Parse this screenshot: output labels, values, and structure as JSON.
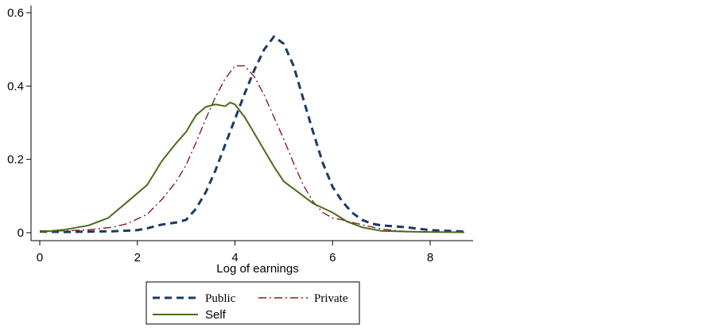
{
  "chart_data": {
    "type": "line",
    "title": "",
    "xlabel": "Log of earnings",
    "ylabel": "",
    "xlim": [
      -0.1,
      8.8
    ],
    "ylim": [
      0,
      0.6
    ],
    "xticks": [
      0,
      2,
      4,
      6,
      8
    ],
    "xtick_labels": [
      "0",
      "2",
      "4",
      "6",
      "8"
    ],
    "yticks": [
      0,
      0.2,
      0.4,
      0.6
    ],
    "ytick_labels": [
      "0",
      "0.2",
      "0.4",
      "0.6"
    ],
    "grid": false,
    "legend_position": "bottom",
    "series": [
      {
        "name": "Public",
        "color": "#1a3a66",
        "style": "dashed",
        "x": [
          0,
          0.5,
          1,
          1.5,
          2,
          2.2,
          2.5,
          2.8,
          3,
          3.2,
          3.4,
          3.6,
          3.8,
          4,
          4.2,
          4.4,
          4.6,
          4.8,
          5,
          5.2,
          5.4,
          5.6,
          5.8,
          6,
          6.2,
          6.4,
          6.6,
          6.8,
          7,
          7.5,
          8,
          8.7
        ],
        "y": [
          0.003,
          0.002,
          0.003,
          0.004,
          0.007,
          0.012,
          0.022,
          0.028,
          0.035,
          0.065,
          0.11,
          0.17,
          0.24,
          0.31,
          0.38,
          0.445,
          0.5,
          0.535,
          0.515,
          0.455,
          0.365,
          0.275,
          0.19,
          0.125,
          0.085,
          0.055,
          0.035,
          0.025,
          0.02,
          0.015,
          0.007,
          0.003
        ]
      },
      {
        "name": "Private",
        "color": "#8b1a1a",
        "style": "dashdot",
        "x": [
          0,
          0.5,
          1,
          1.5,
          1.8,
          2.2,
          2.5,
          2.8,
          3,
          3.2,
          3.4,
          3.6,
          3.8,
          4,
          4.2,
          4.4,
          4.6,
          4.8,
          5,
          5.2,
          5.4,
          5.6,
          5.8,
          6,
          6.2,
          6.5,
          7,
          7.5,
          8,
          8.7
        ],
        "y": [
          0.005,
          0.005,
          0.008,
          0.015,
          0.025,
          0.05,
          0.09,
          0.14,
          0.185,
          0.245,
          0.31,
          0.37,
          0.42,
          0.455,
          0.455,
          0.425,
          0.375,
          0.315,
          0.255,
          0.19,
          0.13,
          0.085,
          0.055,
          0.04,
          0.035,
          0.025,
          0.01,
          0.003,
          0.002,
          0.001
        ]
      },
      {
        "name": "Self",
        "color": "#4b6b1a",
        "style": "solid",
        "x": [
          0,
          0.5,
          1,
          1.4,
          1.8,
          2.2,
          2.5,
          2.8,
          3,
          3.2,
          3.4,
          3.6,
          3.8,
          3.9,
          4,
          4.2,
          4.4,
          4.6,
          4.8,
          5,
          5.3,
          5.6,
          6,
          6.3,
          6.6,
          7,
          7.5,
          8,
          8.7
        ],
        "y": [
          0.002,
          0.008,
          0.02,
          0.04,
          0.085,
          0.13,
          0.195,
          0.245,
          0.275,
          0.32,
          0.343,
          0.35,
          0.345,
          0.355,
          0.35,
          0.315,
          0.27,
          0.225,
          0.18,
          0.14,
          0.11,
          0.08,
          0.055,
          0.03,
          0.015,
          0.005,
          0.003,
          0.002,
          0.001
        ]
      }
    ]
  },
  "legend": {
    "items": [
      {
        "label": "Public",
        "font": "serif"
      },
      {
        "label": "Private",
        "font": "serif"
      },
      {
        "label": "Self",
        "font": "sans"
      }
    ]
  }
}
